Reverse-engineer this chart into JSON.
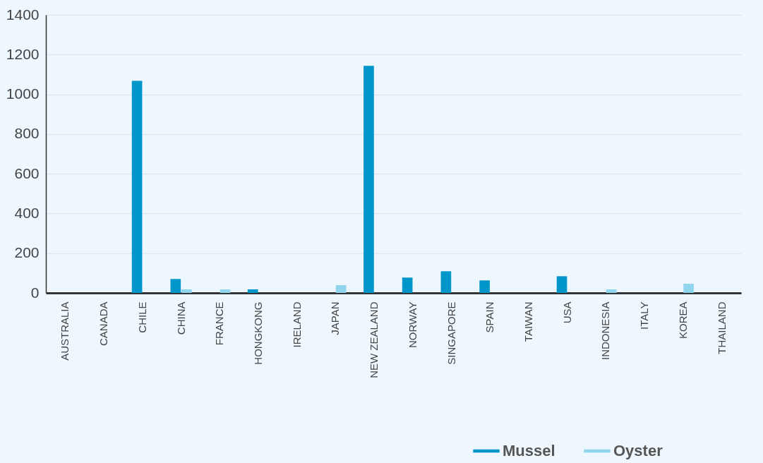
{
  "chart_data": {
    "type": "bar",
    "categories": [
      "AUSTRALIA",
      "CANADA",
      "CHILE",
      "CHINA",
      "FRANCE",
      "HONGKONG",
      "IRELAND",
      "JAPAN",
      "NEW ZEALAND",
      "NORWAY",
      "SINGAPORE",
      "SPAIN",
      "TAIWAN",
      "USA",
      "INDONESIA",
      "ITALY",
      "KOREA",
      "THAILAND"
    ],
    "series": [
      {
        "name": "Mussel",
        "color": "#0096c9",
        "values": [
          null,
          null,
          1068,
          70,
          null,
          18,
          null,
          null,
          1143,
          77,
          109,
          63,
          null,
          84,
          null,
          null,
          null,
          null
        ]
      },
      {
        "name": "Oyster",
        "color": "#8ed5ed",
        "values": [
          null,
          null,
          null,
          18,
          18,
          null,
          null,
          39,
          null,
          null,
          null,
          null,
          null,
          null,
          18,
          null,
          46,
          null
        ]
      }
    ],
    "ylim": [
      0,
      1400
    ],
    "yticks": [
      0,
      200,
      400,
      600,
      800,
      1000,
      1200,
      1400
    ],
    "grid": "y",
    "legend": "bottom right"
  }
}
